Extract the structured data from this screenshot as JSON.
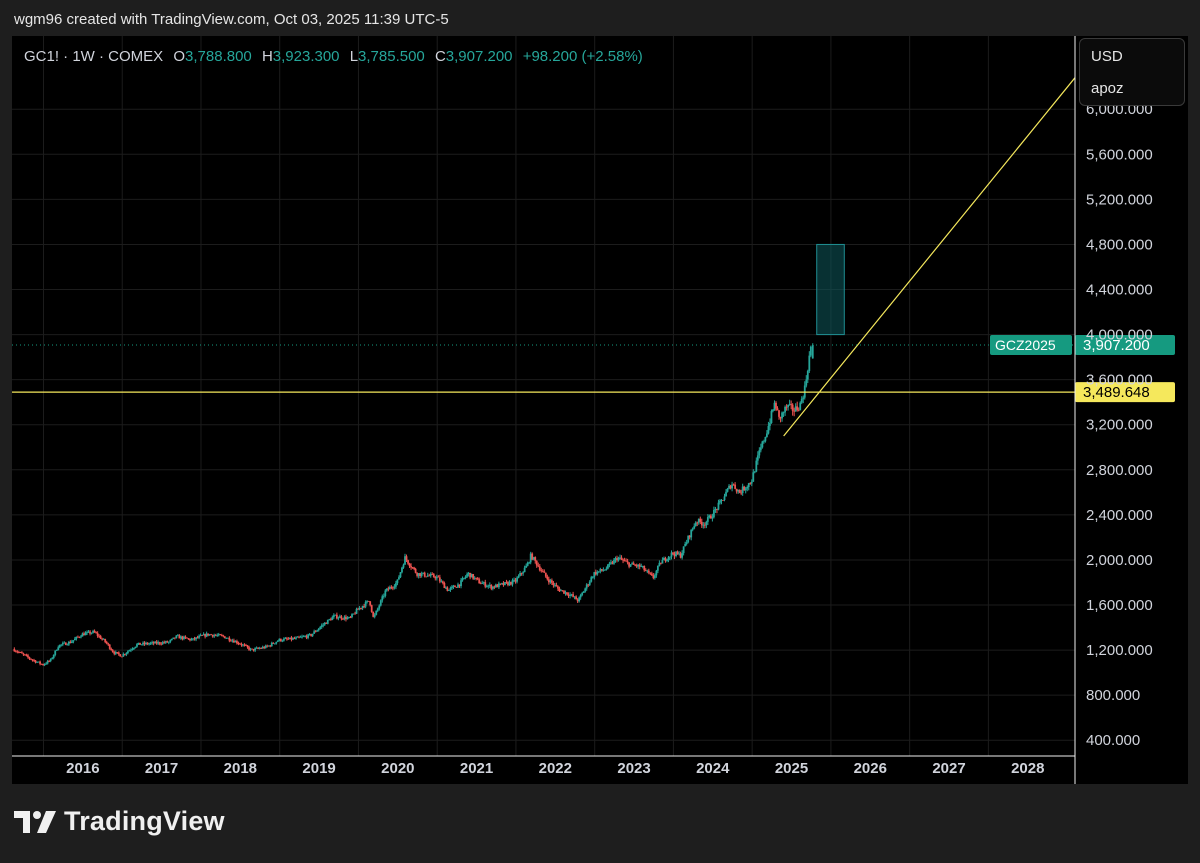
{
  "header": {
    "credit": "wgm96 created with TradingView.com, Oct 03, 2025 11:39 UTC-5"
  },
  "legend": {
    "symbol": "GC1! · 1W · COMEX",
    "o_label": "O",
    "o_value": "3,788.800",
    "h_label": "H",
    "h_value": "3,923.300",
    "l_label": "L",
    "l_value": "3,785.500",
    "c_label": "C",
    "c_value": "3,907.200",
    "change": "+98.200 (+2.58%)"
  },
  "scale": {
    "currency": "USD",
    "unit": "apoz"
  },
  "footer": {
    "brand": "TradingView"
  },
  "colors": {
    "up": "#26a69a",
    "down": "#ef5350",
    "trendline": "#f5e85c",
    "zone": "#0e5a5d",
    "price_tag": "#159a80"
  },
  "chart_data": {
    "type": "candlestick",
    "symbol": "GC1!",
    "interval": "1W",
    "exchange": "COMEX",
    "x_tick_labels": [
      "2016",
      "2017",
      "2018",
      "2019",
      "2020",
      "2021",
      "2022",
      "2023",
      "2024",
      "2025",
      "2026",
      "2027",
      "2028"
    ],
    "y_tick_labels": [
      "400.000",
      "800.000",
      "1,200.000",
      "1,600.000",
      "2,000.000",
      "2,400.000",
      "2,800.000",
      "3,200.000",
      "3,600.000",
      "4,000.000",
      "4,400.000",
      "4,800.000",
      "5,200.000",
      "5,600.000",
      "6,000.000"
    ],
    "y_ticks": [
      400,
      800,
      1200,
      1600,
      2000,
      2400,
      2800,
      3200,
      3600,
      4000,
      4400,
      4800,
      5200,
      5600,
      6000
    ],
    "xlim": [
      2015.6,
      2029.1
    ],
    "ylim": [
      260,
      6650
    ],
    "price_path": [
      [
        2015.62,
        1210
      ],
      [
        2015.85,
        1120
      ],
      [
        2016.0,
        1070
      ],
      [
        2016.1,
        1110
      ],
      [
        2016.2,
        1240
      ],
      [
        2016.35,
        1270
      ],
      [
        2016.5,
        1340
      ],
      [
        2016.65,
        1360
      ],
      [
        2016.8,
        1270
      ],
      [
        2016.9,
        1180
      ],
      [
        2017.0,
        1150
      ],
      [
        2017.2,
        1250
      ],
      [
        2017.4,
        1260
      ],
      [
        2017.6,
        1270
      ],
      [
        2017.7,
        1320
      ],
      [
        2017.9,
        1290
      ],
      [
        2018.0,
        1320
      ],
      [
        2018.1,
        1340
      ],
      [
        2018.3,
        1320
      ],
      [
        2018.5,
        1260
      ],
      [
        2018.65,
        1200
      ],
      [
        2018.85,
        1230
      ],
      [
        2019.0,
        1290
      ],
      [
        2019.2,
        1300
      ],
      [
        2019.4,
        1330
      ],
      [
        2019.55,
        1420
      ],
      [
        2019.7,
        1500
      ],
      [
        2019.9,
        1480
      ],
      [
        2020.0,
        1560
      ],
      [
        2020.15,
        1640
      ],
      [
        2020.2,
        1480
      ],
      [
        2020.35,
        1720
      ],
      [
        2020.5,
        1800
      ],
      [
        2020.6,
        2020
      ],
      [
        2020.75,
        1880
      ],
      [
        2020.9,
        1860
      ],
      [
        2021.0,
        1850
      ],
      [
        2021.15,
        1730
      ],
      [
        2021.3,
        1790
      ],
      [
        2021.4,
        1880
      ],
      [
        2021.55,
        1800
      ],
      [
        2021.7,
        1760
      ],
      [
        2021.9,
        1790
      ],
      [
        2022.0,
        1810
      ],
      [
        2022.15,
        1950
      ],
      [
        2022.2,
        2040
      ],
      [
        2022.4,
        1840
      ],
      [
        2022.55,
        1740
      ],
      [
        2022.7,
        1690
      ],
      [
        2022.8,
        1640
      ],
      [
        2022.9,
        1760
      ],
      [
        2023.0,
        1880
      ],
      [
        2023.15,
        1920
      ],
      [
        2023.3,
        2020
      ],
      [
        2023.45,
        1960
      ],
      [
        2023.6,
        1940
      ],
      [
        2023.75,
        1840
      ],
      [
        2023.85,
        1980
      ],
      [
        2024.0,
        2060
      ],
      [
        2024.1,
        2040
      ],
      [
        2024.2,
        2200
      ],
      [
        2024.3,
        2350
      ],
      [
        2024.4,
        2320
      ],
      [
        2024.5,
        2400
      ],
      [
        2024.6,
        2500
      ],
      [
        2024.75,
        2680
      ],
      [
        2024.85,
        2600
      ],
      [
        2025.0,
        2700
      ],
      [
        2025.1,
        2950
      ],
      [
        2025.2,
        3150
      ],
      [
        2025.3,
        3400
      ],
      [
        2025.35,
        3250
      ],
      [
        2025.45,
        3360
      ],
      [
        2025.55,
        3330
      ],
      [
        2025.62,
        3380
      ],
      [
        2025.68,
        3530
      ],
      [
        2025.73,
        3780
      ],
      [
        2025.76,
        3907
      ]
    ],
    "last_candle": {
      "open": 3788.8,
      "high": 3923.3,
      "low": 3785.5,
      "close": 3907.2
    },
    "last_price": {
      "label": "GCZ2025",
      "value": "3,907.200",
      "y": 3907.2
    },
    "horizontal_line": {
      "label": "3,489.648",
      "y": 3489.648
    },
    "trendline": {
      "x1": 2025.4,
      "y1": 3100,
      "x2": 2029.1,
      "y2": 6280
    },
    "target_zone": {
      "x1": 2025.82,
      "x2": 2026.17,
      "y1": 4000,
      "y2": 4800
    },
    "grid": true
  }
}
